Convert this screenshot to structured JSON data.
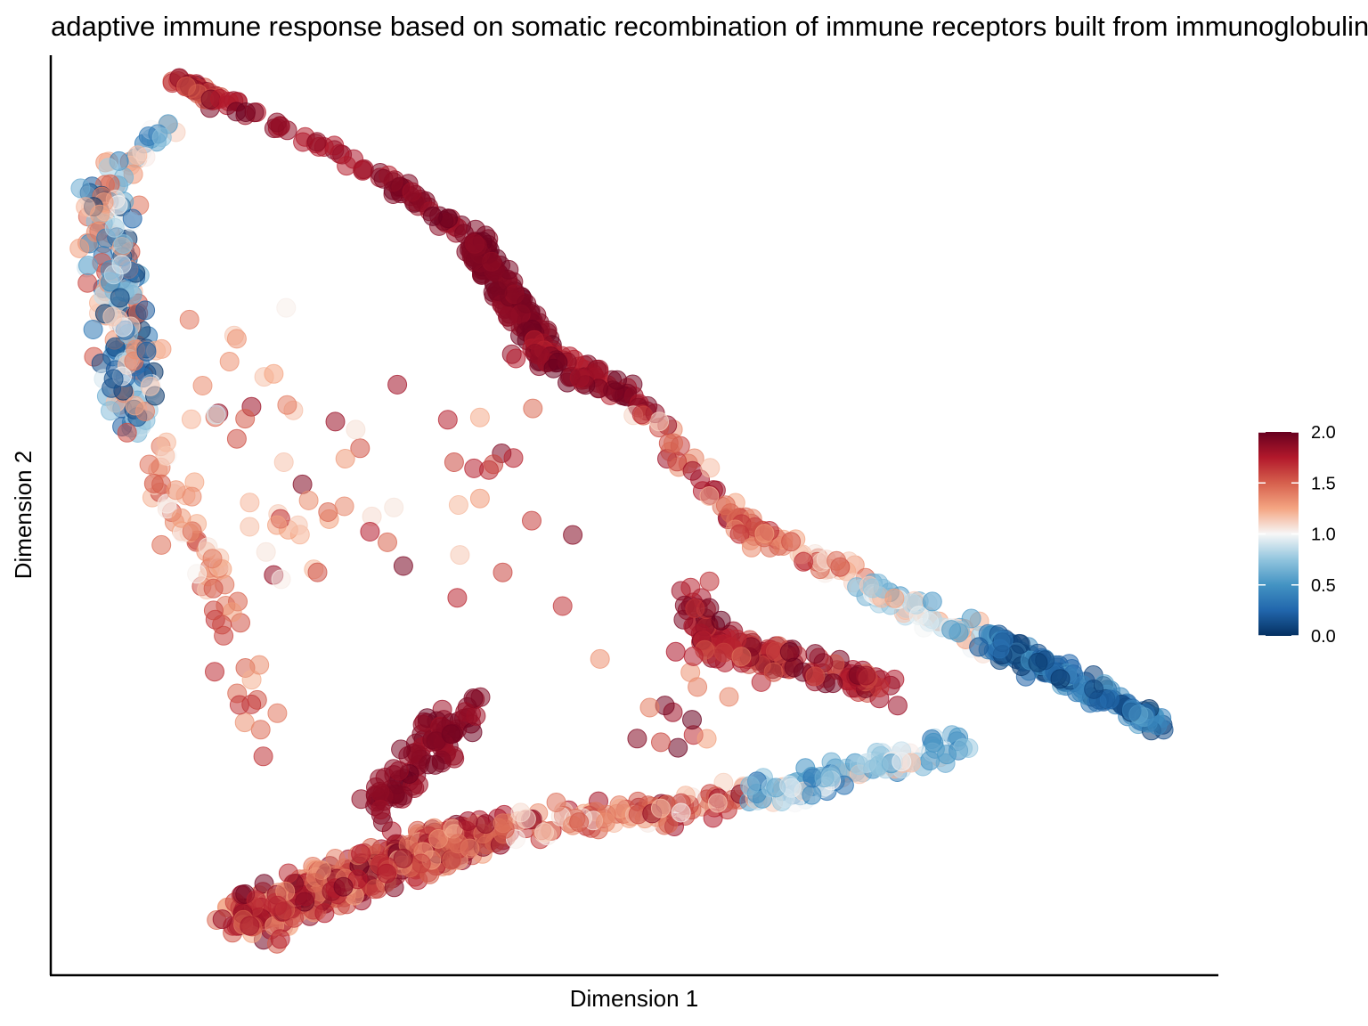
{
  "chart_data": {
    "type": "scatter",
    "title": "adaptive immune response based on somatic recombination of immune receptors built from immunoglobulin superfamily domains",
    "xlabel": "Dimension 1",
    "ylabel": "Dimension 2",
    "x_ticks_shown": false,
    "y_ticks_shown": false,
    "grid": false,
    "xlim": [
      0,
      100
    ],
    "ylim": [
      0,
      100
    ],
    "color_scale": {
      "name": "RdBu (reversed)",
      "min": 0.0,
      "max": 2.0,
      "colors": [
        "#053061",
        "#2166ac",
        "#4393c3",
        "#92c5de",
        "#f7f7f7",
        "#f4a582",
        "#d6604d",
        "#b2182b",
        "#67001f"
      ],
      "tick_values": [
        0.0,
        0.5,
        1.0,
        1.5,
        2.0
      ],
      "tick_labels": [
        "0.0",
        "0.5",
        "1.0",
        "1.5",
        "2.0"
      ]
    },
    "legend": {
      "position": "right",
      "title": ""
    },
    "point_opacity": 0.55,
    "path_groups": [
      {
        "from": [
          10.2,
          97.3
        ],
        "to": [
          15.0,
          95.0
        ],
        "n": 40,
        "spread": 0.7,
        "value": [
          1.5,
          2.0
        ]
      },
      {
        "from": [
          14.5,
          95.4
        ],
        "to": [
          30.0,
          85.7
        ],
        "n": 38,
        "spread": 0.8,
        "value": [
          1.7,
          2.0
        ]
      },
      {
        "from": [
          29.0,
          86.2
        ],
        "to": [
          37.5,
          78.9
        ],
        "n": 40,
        "spread": 0.9,
        "value": [
          1.8,
          2.0
        ]
      },
      {
        "from": [
          36.2,
          79.9
        ],
        "to": [
          41.8,
          68.9
        ],
        "n": 140,
        "spread": 1.3,
        "value": [
          1.85,
          2.0
        ]
      },
      {
        "from": [
          40.5,
          68.4
        ],
        "to": [
          50.8,
          62.6
        ],
        "n": 80,
        "spread": 1.4,
        "value": [
          1.7,
          2.0
        ]
      },
      {
        "from": [
          50.0,
          62.0
        ],
        "to": [
          60.1,
          48.0
        ],
        "n": 45,
        "spread": 1.2,
        "value": [
          1.1,
          1.9
        ]
      },
      {
        "from": [
          59.8,
          48.6
        ],
        "to": [
          70.0,
          42.6
        ],
        "n": 40,
        "spread": 1.2,
        "value": [
          1.0,
          1.7
        ]
      },
      {
        "from": [
          69.5,
          42.4
        ],
        "to": [
          80.7,
          35.5
        ],
        "n": 65,
        "spread": 1.3,
        "value": [
          0.5,
          1.3
        ]
      },
      {
        "from": [
          80.0,
          36.6
        ],
        "to": [
          95.0,
          27.2
        ],
        "n": 160,
        "spread": 1.2,
        "value": [
          0.0,
          0.6
        ]
      },
      {
        "from": [
          5.0,
          86.2
        ],
        "to": [
          10.5,
          92.2
        ],
        "n": 25,
        "spread": 1.5,
        "value": [
          0.3,
          1.4
        ]
      },
      {
        "from": [
          4.3,
          85.2
        ],
        "to": [
          7.3,
          60.3
        ],
        "n": 210,
        "spread": 2.2,
        "value": [
          0.0,
          1.6
        ]
      },
      {
        "from": [
          7.3,
          60.3
        ],
        "to": [
          14.5,
          41.2
        ],
        "n": 45,
        "spread": 2.2,
        "value": [
          1.0,
          1.6
        ]
      },
      {
        "from": [
          14.5,
          41.2
        ],
        "to": [
          18.3,
          24.2
        ],
        "n": 20,
        "spread": 1.8,
        "value": [
          1.2,
          1.7
        ]
      },
      {
        "from": [
          15.7,
          5.7
        ],
        "to": [
          37.0,
          15.6
        ],
        "n": 470,
        "spread": 2.2,
        "value": [
          1.2,
          2.0
        ]
      },
      {
        "from": [
          37.0,
          15.6
        ],
        "to": [
          60.1,
          19.2
        ],
        "n": 120,
        "spread": 1.8,
        "value": [
          1.0,
          1.9
        ]
      },
      {
        "from": [
          60.1,
          19.2
        ],
        "to": [
          78.1,
          25.1
        ],
        "n": 110,
        "spread": 1.5,
        "value": [
          0.3,
          1.2
        ]
      },
      {
        "from": [
          28.0,
          18.5
        ],
        "to": [
          35.5,
          28.8
        ],
        "n": 100,
        "spread": 2.0,
        "value": [
          1.8,
          2.0
        ]
      },
      {
        "from": [
          55.8,
          36.6
        ],
        "to": [
          72.0,
          31.1
        ],
        "n": 120,
        "spread": 1.6,
        "value": [
          1.5,
          2.0
        ]
      },
      {
        "from": [
          54.4,
          41.5
        ],
        "to": [
          58.5,
          33.9
        ],
        "n": 40,
        "spread": 1.8,
        "value": [
          1.6,
          2.0
        ]
      }
    ],
    "scatter_groups": [
      {
        "x": [
          12.0,
          45.0
        ],
        "y": [
          36.6,
          65.1
        ],
        "n": 45,
        "value": [
          1.0,
          2.0
        ]
      },
      {
        "x": [
          8.4,
          26.5
        ],
        "y": [
          48.6,
          72.8
        ],
        "n": 20,
        "value": [
          0.9,
          1.5
        ]
      },
      {
        "x": [
          46.8,
          62.0
        ],
        "y": [
          24.2,
          35.5
        ],
        "n": 20,
        "value": [
          1.2,
          2.0
        ]
      }
    ]
  }
}
